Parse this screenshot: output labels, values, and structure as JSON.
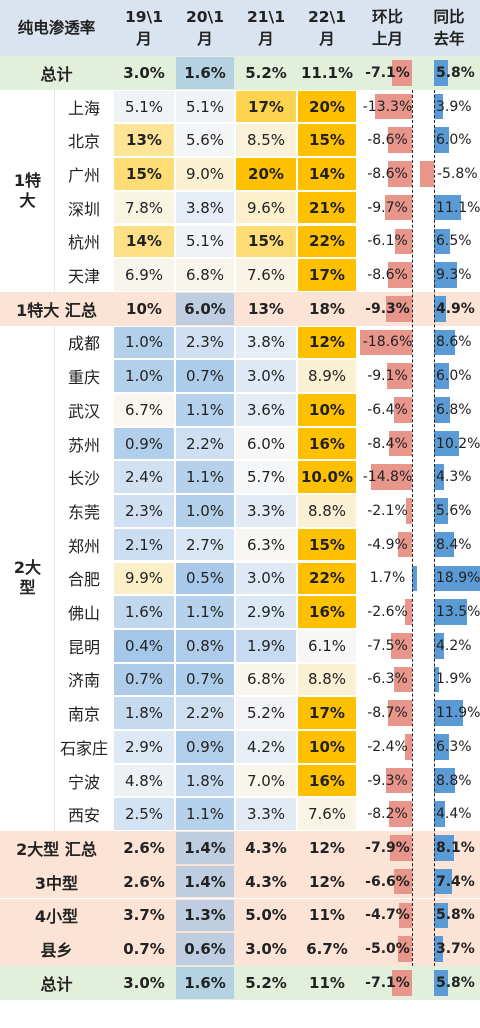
{
  "table_title": "纯电渗透率",
  "columns": [
    "19\\1\n月",
    "20\\1\n月",
    "21\\1\n月",
    "22\\1\n月",
    "环比\n上月",
    "同比\n去年"
  ],
  "groups": [
    "1特\n大",
    "2大\n型"
  ],
  "colors": {
    "header_bg": "#dae4f1",
    "total_bg": "#e2efda",
    "subtotal_bg": "#fbe3d5",
    "neg_bar": "#e8968b",
    "pos_bar": "#5b9bd5",
    "heat_low": "#f7f7f7",
    "heat_blue": "#9dc3e6",
    "heat_yellow": "#fed966",
    "heat_orange": "#ffc000"
  },
  "chart_data": {
    "type": "table",
    "title": "纯电渗透率",
    "columns": [
      "19\\1月",
      "20\\1月",
      "21\\1月",
      "22\\1月",
      "环比上月",
      "同比去年"
    ],
    "rows": [
      {
        "label": "总计",
        "kind": "total",
        "values": [
          "3.0%",
          "1.6%",
          "5.2%",
          "11.1%",
          "-7.1%",
          "5.8%"
        ],
        "mom": -7.1,
        "yoy": 5.8
      },
      {
        "label": "上海",
        "kind": "city",
        "values": [
          "5.1%",
          "5.1%",
          "17%",
          "20%",
          "-13.3%",
          "3.9%"
        ],
        "mom": -13.3,
        "yoy": 3.9
      },
      {
        "label": "北京",
        "kind": "city",
        "values": [
          "13%",
          "5.6%",
          "8.5%",
          "15%",
          "-8.6%",
          "6.0%"
        ],
        "mom": -8.6,
        "yoy": 6.0
      },
      {
        "label": "广州",
        "kind": "city",
        "values": [
          "15%",
          "9.0%",
          "20%",
          "14%",
          "-8.6%",
          "-5.8%"
        ],
        "mom": -8.6,
        "yoy": -5.8
      },
      {
        "label": "深圳",
        "kind": "city",
        "values": [
          "7.8%",
          "3.8%",
          "9.6%",
          "21%",
          "-9.7%",
          "11.1%"
        ],
        "mom": -9.7,
        "yoy": 11.1
      },
      {
        "label": "杭州",
        "kind": "city",
        "values": [
          "14%",
          "5.1%",
          "15%",
          "22%",
          "-6.1%",
          "6.5%"
        ],
        "mom": -6.1,
        "yoy": 6.5
      },
      {
        "label": "天津",
        "kind": "city",
        "values": [
          "6.9%",
          "6.8%",
          "7.6%",
          "17%",
          "-8.6%",
          "9.3%"
        ],
        "mom": -8.6,
        "yoy": 9.3
      },
      {
        "label": "1特大 汇总",
        "kind": "subtotal",
        "values": [
          "10%",
          "6.0%",
          "13%",
          "18%",
          "-9.3%",
          "4.9%"
        ],
        "mom": -9.3,
        "yoy": 4.9
      },
      {
        "label": "成都",
        "kind": "city",
        "values": [
          "1.0%",
          "2.3%",
          "3.8%",
          "12%",
          "-18.6%",
          "8.6%"
        ],
        "mom": -18.6,
        "yoy": 8.6
      },
      {
        "label": "重庆",
        "kind": "city",
        "values": [
          "1.0%",
          "0.7%",
          "3.0%",
          "8.9%",
          "-9.1%",
          "6.0%"
        ],
        "mom": -9.1,
        "yoy": 6.0
      },
      {
        "label": "武汉",
        "kind": "city",
        "values": [
          "6.7%",
          "1.1%",
          "3.6%",
          "10%",
          "-6.4%",
          "6.8%"
        ],
        "mom": -6.4,
        "yoy": 6.8
      },
      {
        "label": "苏州",
        "kind": "city",
        "values": [
          "0.9%",
          "2.2%",
          "6.0%",
          "16%",
          "-8.4%",
          "10.2%"
        ],
        "mom": -8.4,
        "yoy": 10.2
      },
      {
        "label": "长沙",
        "kind": "city",
        "values": [
          "2.4%",
          "1.1%",
          "5.7%",
          "10.0%",
          "-14.8%",
          "4.3%"
        ],
        "mom": -14.8,
        "yoy": 4.3
      },
      {
        "label": "东莞",
        "kind": "city",
        "values": [
          "2.3%",
          "1.0%",
          "3.3%",
          "8.8%",
          "-2.1%",
          "5.6%"
        ],
        "mom": -2.1,
        "yoy": 5.6
      },
      {
        "label": "郑州",
        "kind": "city",
        "values": [
          "2.1%",
          "2.7%",
          "6.3%",
          "15%",
          "-4.9%",
          "8.4%"
        ],
        "mom": -4.9,
        "yoy": 8.4
      },
      {
        "label": "合肥",
        "kind": "city",
        "values": [
          "9.9%",
          "0.5%",
          "3.0%",
          "22%",
          "1.7%",
          "18.9%"
        ],
        "mom": 1.7,
        "yoy": 18.9
      },
      {
        "label": "佛山",
        "kind": "city",
        "values": [
          "1.6%",
          "1.1%",
          "2.9%",
          "16%",
          "-2.6%",
          "13.5%"
        ],
        "mom": -2.6,
        "yoy": 13.5
      },
      {
        "label": "昆明",
        "kind": "city",
        "values": [
          "0.4%",
          "0.8%",
          "1.9%",
          "6.1%",
          "-7.5%",
          "4.2%"
        ],
        "mom": -7.5,
        "yoy": 4.2
      },
      {
        "label": "济南",
        "kind": "city",
        "values": [
          "0.7%",
          "0.7%",
          "6.8%",
          "8.8%",
          "-6.3%",
          "1.9%"
        ],
        "mom": -6.3,
        "yoy": 1.9
      },
      {
        "label": "南京",
        "kind": "city",
        "values": [
          "1.8%",
          "2.2%",
          "5.2%",
          "17%",
          "-8.7%",
          "11.9%"
        ],
        "mom": -8.7,
        "yoy": 11.9
      },
      {
        "label": "石家庄",
        "kind": "city",
        "values": [
          "2.9%",
          "0.9%",
          "4.2%",
          "10%",
          "-2.4%",
          "6.3%"
        ],
        "mom": -2.4,
        "yoy": 6.3
      },
      {
        "label": "宁波",
        "kind": "city",
        "values": [
          "4.8%",
          "1.8%",
          "7.0%",
          "16%",
          "-9.3%",
          "8.8%"
        ],
        "mom": -9.3,
        "yoy": 8.8
      },
      {
        "label": "西安",
        "kind": "city",
        "values": [
          "2.5%",
          "1.1%",
          "3.3%",
          "7.6%",
          "-8.2%",
          "4.4%"
        ],
        "mom": -8.2,
        "yoy": 4.4
      },
      {
        "label": "2大型 汇总",
        "kind": "subtotal",
        "values": [
          "2.6%",
          "1.4%",
          "4.3%",
          "12%",
          "-7.9%",
          "8.1%"
        ],
        "mom": -7.9,
        "yoy": 8.1
      },
      {
        "label": "3中型",
        "kind": "subtotal",
        "values": [
          "2.6%",
          "1.4%",
          "4.3%",
          "12%",
          "-6.6%",
          "7.4%"
        ],
        "mom": -6.6,
        "yoy": 7.4
      },
      {
        "label": "4小型",
        "kind": "subtotal",
        "values": [
          "3.7%",
          "1.3%",
          "5.0%",
          "11%",
          "-4.7%",
          "5.8%"
        ],
        "mom": -4.7,
        "yoy": 5.8
      },
      {
        "label": "县乡",
        "kind": "subtotal",
        "values": [
          "0.7%",
          "0.6%",
          "3.0%",
          "6.7%",
          "-5.0%",
          "3.7%"
        ],
        "mom": -5.0,
        "yoy": 3.7
      },
      {
        "label": "总计",
        "kind": "total",
        "values": [
          "3.0%",
          "1.6%",
          "5.2%",
          "11%",
          "-7.1%",
          "5.8%"
        ],
        "mom": -7.1,
        "yoy": 5.8
      }
    ]
  }
}
